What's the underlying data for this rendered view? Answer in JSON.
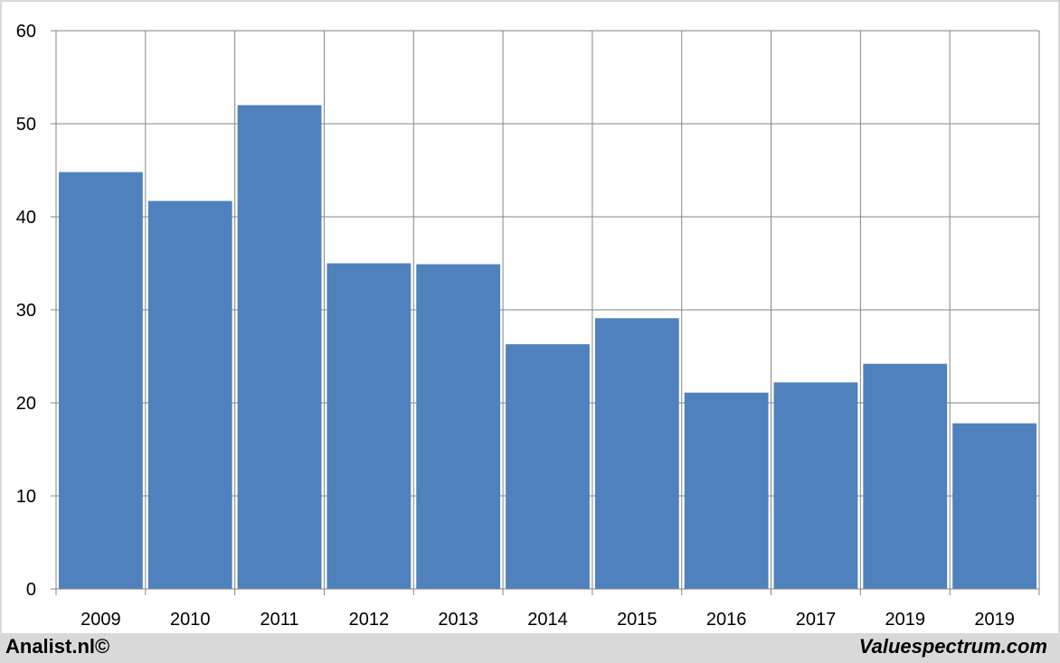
{
  "chart_data": {
    "type": "bar",
    "categories": [
      "2009",
      "2010",
      "2011",
      "2012",
      "2013",
      "2014",
      "2015",
      "2016",
      "2017",
      "2019",
      "2019"
    ],
    "values": [
      44.8,
      41.7,
      52.0,
      35.0,
      34.9,
      26.3,
      29.1,
      21.1,
      22.2,
      24.2,
      17.8
    ],
    "yticks": [
      0,
      10,
      20,
      30,
      40,
      50,
      60
    ],
    "ylim": [
      0,
      60
    ],
    "title": "",
    "xlabel": "",
    "ylabel": "",
    "grid": true,
    "bar_color": "#4f81bd"
  },
  "footer": {
    "left_text": "Analist.nl©",
    "right_text": "Valuespectrum.com"
  }
}
